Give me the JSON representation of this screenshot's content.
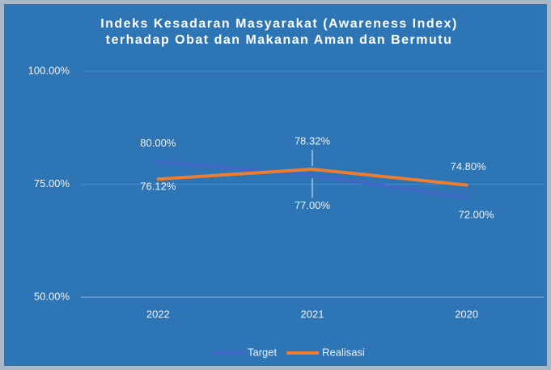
{
  "chart_data": {
    "type": "line",
    "title": [
      "Indeks Kesadaran Masyarakat (Awareness Index)",
      "terhadap Obat dan Makanan Aman dan Bermutu"
    ],
    "categories": [
      "2022",
      "2021",
      "2020"
    ],
    "series": [
      {
        "name": "Target",
        "color": "#4167c9",
        "values": [
          80,
          77,
          72
        ],
        "value_labels": [
          "80.00%",
          "77.00%",
          "72.00%"
        ]
      },
      {
        "name": "Realisasi",
        "color": "#ed7d31",
        "values": [
          76.12,
          78.32,
          74.8
        ],
        "value_labels": [
          "76.12%",
          "78.32%",
          "74.80%"
        ]
      }
    ],
    "ylim": [
      50,
      100
    ],
    "yticks": [
      {
        "value": 50,
        "label": "50.00%"
      },
      {
        "value": 75,
        "label": "75.00%"
      },
      {
        "value": 100,
        "label": "100.00%"
      }
    ],
    "grid": true,
    "legend": "bottom"
  }
}
